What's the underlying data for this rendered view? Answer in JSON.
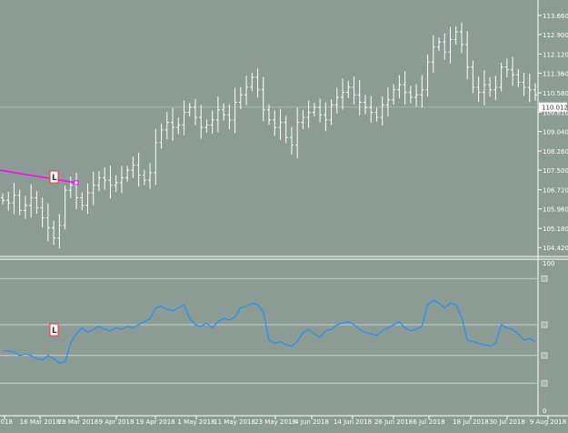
{
  "colors": {
    "background": "#8c9c95",
    "bars": "#ffffff",
    "oscillator": "#1e90ff",
    "trendline": "#ff00ff",
    "grid": "#c8d2cd",
    "labels": "#ffffff",
    "frame": "#ffffff"
  },
  "chart_data": [
    {
      "type": "ohlc",
      "y_ticks": [
        "113.660",
        "112.900",
        "112.120",
        "111.360",
        "110.580",
        "109.810",
        "109.040",
        "108.260",
        "107.500",
        "106.720",
        "105.960",
        "105.180",
        "104.420"
      ],
      "ylim": [
        104.1,
        114.2
      ],
      "current_price": "110.012",
      "marker_label": "L",
      "x_labels": [
        "2018",
        "16 Mar 2018",
        "28 Mar 2018",
        "9 Apr 2018",
        "19 Apr 2018",
        "1 May 2018",
        "11 May 2018",
        "23 May 2018",
        "4 Jun 2018",
        "14 Jun 2018",
        "26 Jun 2018",
        "6 Jul 2018",
        "18 Jul 2018",
        "30 Jul 2018",
        "9 Aug 2018"
      ],
      "bar_closes": [
        106.3,
        106.2,
        106.5,
        105.9,
        106.1,
        106.4,
        106.0,
        105.6,
        105.2,
        104.8,
        105.3,
        106.7,
        106.9,
        106.4,
        106.1,
        106.6,
        106.9,
        107.2,
        107.1,
        106.9,
        107.0,
        107.2,
        107.5,
        107.7,
        107.3,
        107.1,
        107.4,
        108.6,
        109.1,
        109.4,
        109.2,
        109.3,
        109.8,
        110.0,
        109.6,
        109.2,
        109.3,
        109.5,
        109.9,
        109.7,
        109.5,
        110.2,
        110.5,
        110.8,
        111.2,
        110.7,
        109.9,
        109.5,
        109.2,
        109.4,
        108.8,
        108.5,
        109.4,
        109.6,
        109.8,
        110.0,
        109.7,
        109.5,
        110.1,
        110.4,
        110.6,
        110.8,
        110.5,
        110.2,
        110.0,
        109.8,
        109.6,
        110.1,
        110.3,
        110.7,
        110.9,
        110.6,
        110.4,
        110.5,
        110.7,
        111.8,
        112.4,
        112.6,
        112.2,
        112.7,
        113.0,
        112.5,
        111.6,
        110.8,
        110.6,
        110.9,
        110.7,
        110.8,
        111.6,
        111.5,
        111.3,
        111.0,
        110.8,
        110.7,
        110.5
      ],
      "trendline": {
        "from_bar": 0,
        "to_bar": 12,
        "from_price": 107.5,
        "to_price": 107.0
      }
    },
    {
      "type": "line",
      "y_ticks": [
        "100",
        "0"
      ],
      "ylim": [
        0,
        100
      ],
      "levels": [
        88,
        58,
        38,
        20
      ],
      "marker_label": "L",
      "values": [
        41,
        41,
        40,
        38,
        39,
        38,
        36,
        35,
        38,
        36,
        33,
        34,
        46,
        52,
        56,
        53,
        55,
        57,
        55,
        54,
        56,
        55,
        57,
        56,
        58,
        60,
        62,
        69,
        70,
        68,
        67,
        69,
        71,
        62,
        58,
        57,
        59,
        56,
        60,
        62,
        61,
        63,
        69,
        70,
        72,
        71,
        66,
        48,
        46,
        47,
        45,
        44,
        47,
        53,
        55,
        52,
        50,
        54,
        55,
        58,
        59,
        60,
        58,
        55,
        53,
        52,
        51,
        54,
        56,
        58,
        60,
        56,
        54,
        55,
        57,
        71,
        74,
        72,
        69,
        72,
        71,
        63,
        48,
        47,
        46,
        45,
        44,
        46,
        58,
        56,
        55,
        52,
        48,
        49,
        47
      ]
    }
  ]
}
